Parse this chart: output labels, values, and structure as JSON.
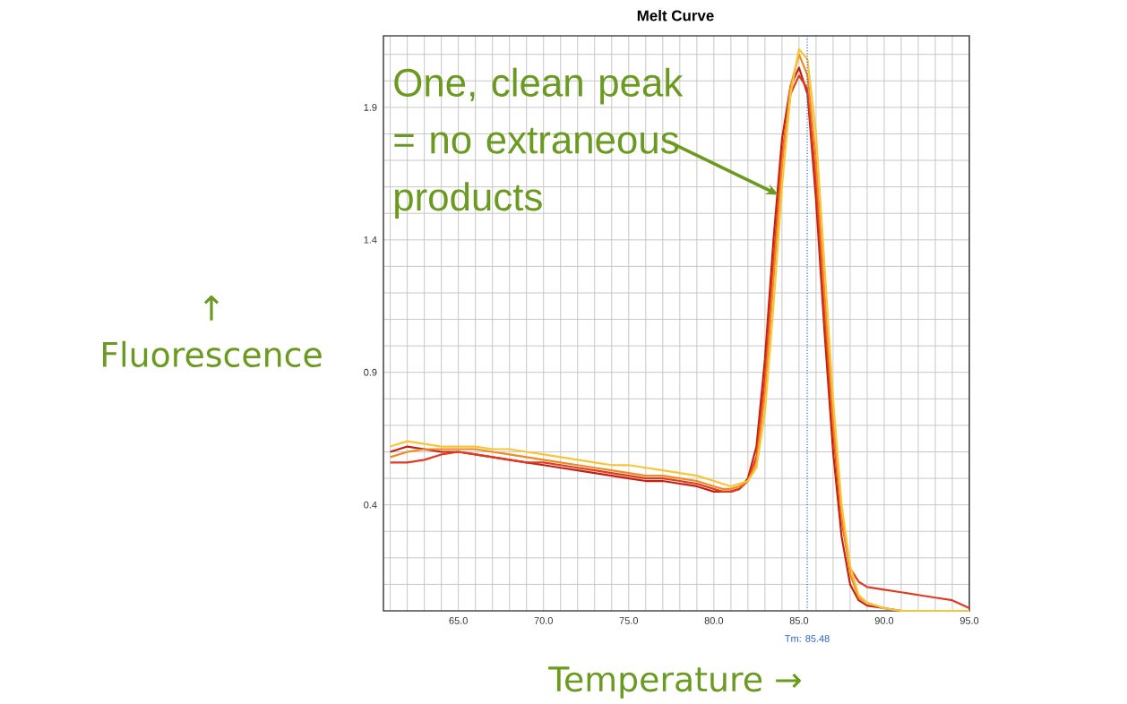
{
  "chart_data": {
    "type": "line",
    "title": "Melt Curve",
    "xlabel": "Temperature →",
    "ylabel": "↑ Fluorescence",
    "annotations": [
      {
        "text": "One, clean peak = no extraneous products",
        "x": 83.8,
        "y": 1.57
      }
    ],
    "x": [
      61,
      62,
      63,
      64,
      65,
      66,
      67,
      68,
      69,
      70,
      71,
      72,
      73,
      74,
      75,
      76,
      77,
      78,
      79,
      80,
      80.5,
      81,
      81.5,
      82,
      82.5,
      83,
      83.5,
      84,
      84.5,
      85,
      85.5,
      86,
      86.5,
      87,
      87.5,
      88,
      88.5,
      89,
      90,
      91,
      92,
      93,
      94,
      95
    ],
    "series": [
      {
        "color": "#c42010",
        "values": [
          0.6,
          0.62,
          0.61,
          0.6,
          0.6,
          0.59,
          0.58,
          0.57,
          0.56,
          0.55,
          0.54,
          0.53,
          0.52,
          0.51,
          0.5,
          0.49,
          0.49,
          0.48,
          0.47,
          0.45,
          0.45,
          0.45,
          0.46,
          0.5,
          0.62,
          0.95,
          1.4,
          1.78,
          1.98,
          2.05,
          1.95,
          1.55,
          1.05,
          0.6,
          0.28,
          0.1,
          0.04,
          0.02,
          0.01,
          0.0,
          0.0,
          0.0,
          0.0,
          0.0
        ]
      },
      {
        "color": "#e03a20",
        "values": [
          0.56,
          0.56,
          0.57,
          0.59,
          0.6,
          0.59,
          0.58,
          0.57,
          0.56,
          0.56,
          0.55,
          0.54,
          0.53,
          0.52,
          0.51,
          0.5,
          0.5,
          0.49,
          0.48,
          0.46,
          0.45,
          0.45,
          0.46,
          0.49,
          0.58,
          0.88,
          1.32,
          1.72,
          1.95,
          2.02,
          1.97,
          1.62,
          1.12,
          0.68,
          0.34,
          0.16,
          0.11,
          0.09,
          0.08,
          0.07,
          0.06,
          0.05,
          0.04,
          0.01
        ]
      },
      {
        "color": "#f08a20",
        "values": [
          0.58,
          0.6,
          0.61,
          0.61,
          0.61,
          0.61,
          0.6,
          0.59,
          0.58,
          0.57,
          0.56,
          0.55,
          0.54,
          0.53,
          0.52,
          0.51,
          0.51,
          0.5,
          0.49,
          0.47,
          0.46,
          0.46,
          0.47,
          0.49,
          0.56,
          0.82,
          1.25,
          1.68,
          1.98,
          2.1,
          2.02,
          1.7,
          1.2,
          0.72,
          0.36,
          0.14,
          0.05,
          0.03,
          0.01,
          0.0,
          0.0,
          null,
          null,
          null
        ]
      },
      {
        "color": "#f8c438",
        "values": [
          0.62,
          0.64,
          0.63,
          0.62,
          0.62,
          0.62,
          0.61,
          0.61,
          0.6,
          0.59,
          0.58,
          0.57,
          0.56,
          0.55,
          0.55,
          0.54,
          0.53,
          0.52,
          0.51,
          0.49,
          0.48,
          0.47,
          0.48,
          0.49,
          0.54,
          0.75,
          1.15,
          1.6,
          1.95,
          2.12,
          2.08,
          1.8,
          1.3,
          0.8,
          0.4,
          0.17,
          0.06,
          0.03,
          0.01,
          0.0,
          0.0,
          0.0,
          0.0,
          0.0
        ]
      }
    ],
    "xlim": [
      60.6,
      95
    ],
    "ylim": [
      0,
      2.17
    ],
    "xticks": [
      {
        "value": 61,
        "label": null
      },
      {
        "value": 62,
        "label": null
      },
      {
        "value": 63,
        "label": null
      },
      {
        "value": 64,
        "label": null
      },
      {
        "value": 65,
        "label": "65.0"
      },
      {
        "value": 66,
        "label": null
      },
      {
        "value": 67,
        "label": null
      },
      {
        "value": 68,
        "label": null
      },
      {
        "value": 69,
        "label": null
      },
      {
        "value": 70,
        "label": "70.0"
      },
      {
        "value": 71,
        "label": null
      },
      {
        "value": 72,
        "label": null
      },
      {
        "value": 73,
        "label": null
      },
      {
        "value": 74,
        "label": null
      },
      {
        "value": 75,
        "label": "75.0"
      },
      {
        "value": 76,
        "label": null
      },
      {
        "value": 77,
        "label": null
      },
      {
        "value": 78,
        "label": null
      },
      {
        "value": 79,
        "label": null
      },
      {
        "value": 80,
        "label": "80.0"
      },
      {
        "value": 81,
        "label": null
      },
      {
        "value": 82,
        "label": null
      },
      {
        "value": 83,
        "label": null
      },
      {
        "value": 84,
        "label": null
      },
      {
        "value": 85,
        "label": "85.0"
      },
      {
        "value": 86,
        "label": null
      },
      {
        "value": 87,
        "label": null
      },
      {
        "value": 88,
        "label": null
      },
      {
        "value": 89,
        "label": null
      },
      {
        "value": 90,
        "label": "90.0"
      },
      {
        "value": 91,
        "label": null
      },
      {
        "value": 92,
        "label": null
      },
      {
        "value": 93,
        "label": null
      },
      {
        "value": 94,
        "label": null
      },
      {
        "value": 95,
        "label": "95.0"
      }
    ],
    "yticks": [
      {
        "value": 0.1,
        "label": null
      },
      {
        "value": 0.2,
        "label": null
      },
      {
        "value": 0.3,
        "label": null
      },
      0.4,
      {
        "value": 0.5,
        "label": null
      },
      {
        "value": 0.6,
        "label": null
      },
      {
        "value": 0.7,
        "label": null
      },
      {
        "value": 0.8,
        "label": null
      },
      0.9,
      {
        "value": 1.0,
        "label": null
      },
      {
        "value": 1.1,
        "label": null
      },
      {
        "value": 1.2,
        "label": null
      },
      {
        "value": 1.3,
        "label": null
      },
      1.4,
      {
        "value": 1.5,
        "label": null
      },
      {
        "value": 1.6,
        "label": null
      },
      {
        "value": 1.7,
        "label": null
      },
      {
        "value": 1.8,
        "label": null
      },
      1.9,
      {
        "value": 2.0,
        "label": null
      },
      {
        "value": 2.1,
        "label": null
      }
    ],
    "grid": true,
    "ref_lines": [
      {
        "axis": "x",
        "value": 85.48,
        "label": "Tm: 85.48",
        "color": "#2a5fd8",
        "line_style": "dotted"
      }
    ]
  }
}
